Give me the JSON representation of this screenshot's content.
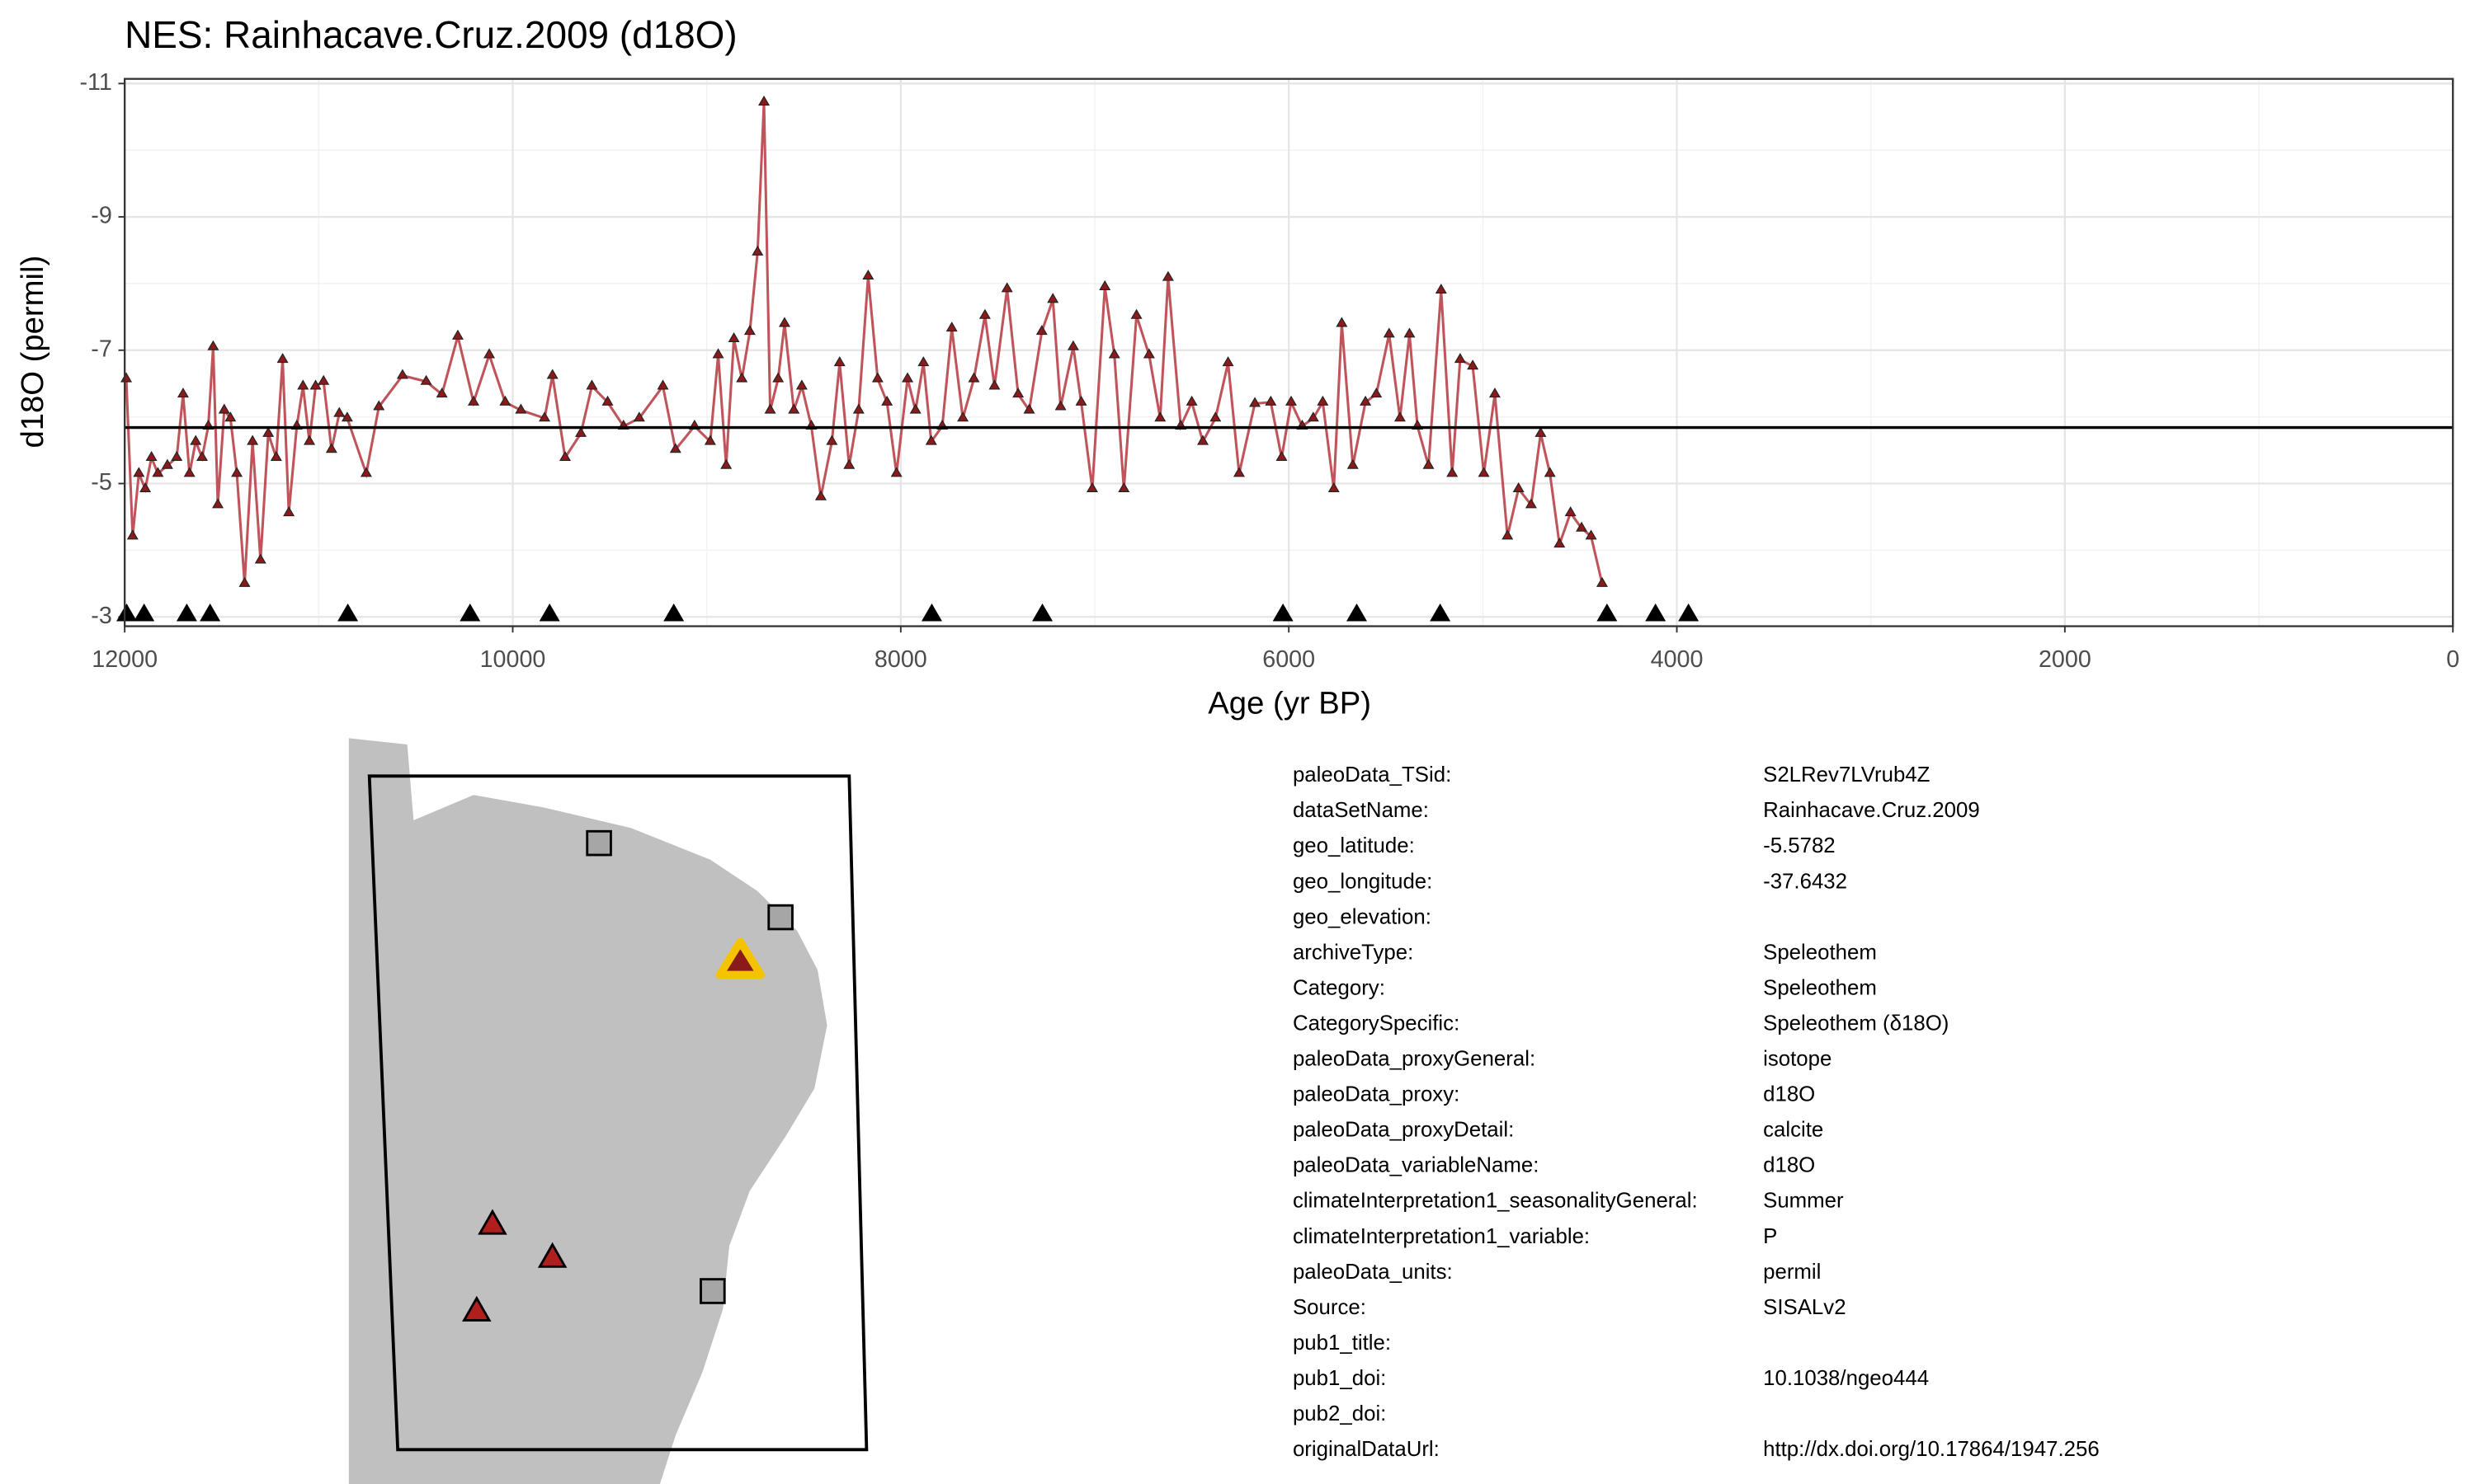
{
  "chart_data": {
    "type": "line",
    "title": "NES: Rainhacave.Cruz.2009 (d18O)",
    "xlabel": "Age (yr BP)",
    "ylabel": "d18O (permil)",
    "xlim": [
      12000,
      0
    ],
    "ylim": [
      -2.86,
      -11.07
    ],
    "xticks": [
      12000,
      10000,
      8000,
      6000,
      4000,
      2000,
      0
    ],
    "yticks": [
      -3,
      -5,
      -7,
      -9,
      -11
    ],
    "grid": true,
    "series": [
      {
        "color": "#bf545b",
        "marker_color": "#8b1a1a",
        "x": [
          11992,
          11959,
          11927,
          11894,
          11862,
          11829,
          11780,
          11732,
          11699,
          11666,
          11634,
          11601,
          11569,
          11544,
          11520,
          11487,
          11455,
          11422,
          11382,
          11341,
          11300,
          11260,
          11219,
          11186,
          11154,
          11113,
          11081,
          11048,
          11016,
          10975,
          10934,
          10894,
          10853,
          10755,
          10690,
          10568,
          10446,
          10365,
          10283,
          10202,
          10121,
          10039,
          9958,
          9836,
          9795,
          9730,
          9649,
          9592,
          9511,
          9429,
          9348,
          9226,
          9161,
          9063,
          8982,
          8941,
          8900,
          8860,
          8819,
          8778,
          8738,
          8705,
          8673,
          8632,
          8599,
          8551,
          8510,
          8461,
          8412,
          8355,
          8315,
          8266,
          8217,
          8168,
          8119,
          8071,
          8022,
          7965,
          7924,
          7883,
          7843,
          7786,
          7737,
          7680,
          7623,
          7566,
          7517,
          7452,
          7395,
          7338,
          7273,
          7216,
          7176,
          7111,
          7070,
          7013,
          6948,
          6899,
          6850,
          6785,
          6720,
          6663,
          6622,
          6557,
          6500,
          6443,
          6378,
          6313,
          6256,
          6175,
          6093,
          6037,
          5988,
          5931,
          5874,
          5825,
          5768,
          5727,
          5670,
          5605,
          5549,
          5483,
          5427,
          5378,
          5337,
          5280,
          5215,
          5158,
          5117,
          5052,
          4995,
          4938,
          4873,
          4816,
          4751,
          4702,
          4654,
          4605,
          4548,
          4491,
          4442,
          4385
        ],
        "values": [
          -6.57,
          -4.21,
          -5.15,
          -4.92,
          -5.39,
          -5.15,
          -5.27,
          -5.39,
          -6.34,
          -5.15,
          -5.63,
          -5.39,
          -5.86,
          -7.05,
          -4.68,
          -6.1,
          -5.98,
          -5.15,
          -3.5,
          -5.63,
          -3.85,
          -5.75,
          -5.39,
          -6.86,
          -4.56,
          -5.86,
          -6.46,
          -5.63,
          -6.46,
          -6.53,
          -5.51,
          -6.05,
          -5.98,
          -5.15,
          -6.15,
          -6.62,
          -6.53,
          -6.34,
          -7.21,
          -6.22,
          -6.93,
          -6.22,
          -6.1,
          -5.98,
          -6.62,
          -5.39,
          -5.75,
          -6.46,
          -6.22,
          -5.86,
          -5.98,
          -6.46,
          -5.51,
          -5.86,
          -5.63,
          -6.93,
          -5.27,
          -7.17,
          -6.57,
          -7.28,
          -8.47,
          -10.72,
          -6.1,
          -6.57,
          -7.4,
          -6.1,
          -6.46,
          -5.86,
          -4.8,
          -5.63,
          -6.81,
          -5.27,
          -6.1,
          -8.11,
          -6.57,
          -6.22,
          -5.15,
          -6.57,
          -6.1,
          -6.81,
          -5.63,
          -5.86,
          -7.33,
          -5.98,
          -6.57,
          -7.52,
          -6.46,
          -7.92,
          -6.34,
          -6.1,
          -7.28,
          -7.76,
          -6.15,
          -7.05,
          -6.22,
          -4.92,
          -7.95,
          -6.93,
          -4.92,
          -7.52,
          -6.93,
          -5.98,
          -8.09,
          -5.86,
          -6.22,
          -5.63,
          -5.98,
          -6.81,
          -5.15,
          -6.2,
          -6.22,
          -5.39,
          -6.22,
          -5.86,
          -5.98,
          -6.22,
          -4.92,
          -7.4,
          -5.27,
          -6.22,
          -6.34,
          -7.24,
          -5.98,
          -7.24,
          -5.86,
          -5.27,
          -7.9,
          -5.15,
          -6.86,
          -6.76,
          -5.15,
          -6.34,
          -4.21,
          -4.92,
          -4.68,
          -5.75,
          -5.15,
          -4.09,
          -4.56,
          -4.33,
          -4.21,
          -3.5
        ]
      }
    ],
    "mean": -5.84,
    "chron_ages": [
      11990,
      11900,
      11680,
      11560,
      10850,
      10220,
      9810,
      9170,
      7840,
      7270,
      6030,
      5650,
      5220,
      4360,
      4110,
      3940
    ],
    "chron_value": -3
  },
  "metadata": {
    "rows": [
      [
        "paleoData_TSid:",
        "S2LRev7LVrub4Z"
      ],
      [
        "dataSetName:",
        "Rainhacave.Cruz.2009"
      ],
      [
        "geo_latitude:",
        "-5.5782"
      ],
      [
        "geo_longitude:",
        "-37.6432"
      ],
      [
        "geo_elevation:"
      ],
      [
        "archiveType:",
        "Speleothem"
      ],
      [
        "Category:",
        "Speleothem"
      ],
      [
        "CategorySpecific:",
        "Speleothem (δ18O)"
      ],
      [
        "paleoData_proxyGeneral:",
        "isotope"
      ],
      [
        "paleoData_proxy:",
        "d18O"
      ],
      [
        "paleoData_proxyDetail:",
        "calcite"
      ],
      [
        "paleoData_variableName:",
        "d18O"
      ],
      [
        "climateInterpretation1_seasonalityGeneral:",
        "Summer"
      ],
      [
        "climateInterpretation1_variable:",
        "P"
      ],
      [
        "paleoData_units:",
        "permil"
      ],
      [
        "Source:",
        "SISALv2"
      ],
      [
        "pub1_title:"
      ],
      [
        "pub1_doi:",
        "10.1038/ngeo444"
      ],
      [
        "pub2_doi:"
      ],
      [
        "originalDataUrl:",
        "http://dx.doi.org/10.17864/1947.256"
      ]
    ]
  }
}
